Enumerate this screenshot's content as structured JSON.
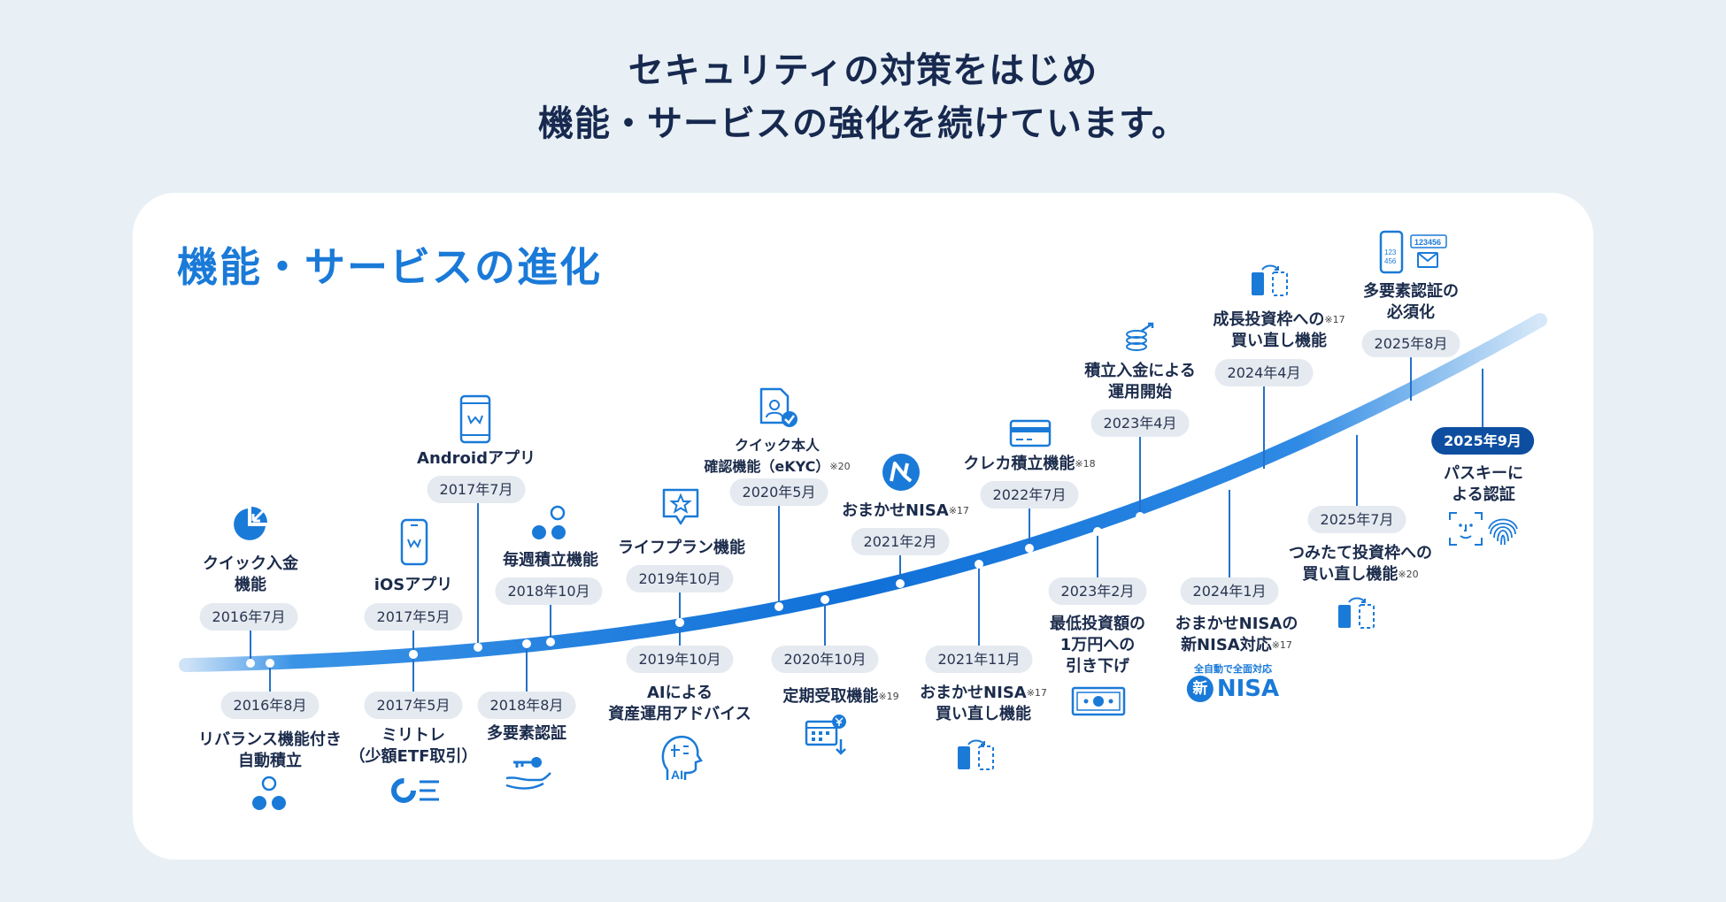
{
  "headline": {
    "line1": "セキュリティの対策をはじめ",
    "line2": "機能・サービスの強化を続けています。"
  },
  "section_title": "機能・サービスの進化",
  "colors": {
    "accent": "#1a7ad8",
    "dark_navy": "#0d4ea0",
    "pill_bg": "#e4eaf0"
  },
  "milestones": [
    {
      "id": "quick-deposit",
      "date": "2016年7月",
      "label1": "クイック入金",
      "label2": "機能",
      "note": "",
      "icon": "pie-arrow-icon"
    },
    {
      "id": "rebalance",
      "date": "2016年8月",
      "label1": "リバランス機能付き",
      "label2": "自動積立",
      "note": "",
      "icon": "dots-cluster-icon"
    },
    {
      "id": "ios-app",
      "date": "2017年5月",
      "label1": "iOSアプリ",
      "label2": "",
      "note": "",
      "icon": "phone-icon"
    },
    {
      "id": "miritore",
      "date": "2017年5月",
      "label1": "ミリトレ",
      "label2": "（少額ETF取引）",
      "note": "",
      "icon": "donut-list-icon"
    },
    {
      "id": "android-app",
      "date": "2017年7月",
      "label1": "Androidアプリ",
      "label2": "",
      "note": "",
      "icon": "phone-icon"
    },
    {
      "id": "mfa",
      "date": "2018年8月",
      "label1": "多要素認証",
      "label2": "",
      "note": "",
      "icon": "key-hand-icon"
    },
    {
      "id": "weekly",
      "date": "2018年10月",
      "label1": "毎週積立機能",
      "label2": "",
      "note": "",
      "icon": "dots-cluster-icon"
    },
    {
      "id": "lifeplan",
      "date": "2019年10月",
      "label1": "ライフプラン機能",
      "label2": "",
      "note": "",
      "icon": "star-bubble-icon"
    },
    {
      "id": "ai-advice",
      "date": "2019年10月",
      "label1": "AIによる",
      "label2": "資産運用アドバイス",
      "note": "",
      "icon": "ai-head-icon"
    },
    {
      "id": "ekyc",
      "date": "2020年5月",
      "label1": "クイック本人",
      "label2": "確認機能（eKYC）",
      "note": "※20",
      "icon": "id-doc-icon"
    },
    {
      "id": "teiki",
      "date": "2020年10月",
      "label1": "定期受取機能",
      "label2": "",
      "note": "※19",
      "icon": "calendar-yen-icon"
    },
    {
      "id": "omakase",
      "date": "2021年2月",
      "label1": "おまかせNISA",
      "label2": "",
      "note": "※17",
      "icon": "n-logo-icon"
    },
    {
      "id": "omakase-rebuy",
      "date": "2021年11月",
      "label1": "おまかせNISA",
      "label2": "買い直し機能",
      "note": "※17",
      "icon": "swap-icon"
    },
    {
      "id": "credit",
      "date": "2022年7月",
      "label1": "クレカ積立機能",
      "label2": "",
      "note": "※18",
      "icon": "credit-card-icon"
    },
    {
      "id": "min-invest",
      "date": "2023年2月",
      "label1": "最低投資額の",
      "label2": "1万円への",
      "label3": "引き下げ",
      "note": "",
      "icon": "banknote-icon"
    },
    {
      "id": "tsumitate-start",
      "date": "2023年4月",
      "label1": "積立入金による",
      "label2": "運用開始",
      "note": "",
      "icon": "coins-growth-icon"
    },
    {
      "id": "new-nisa",
      "date": "2024年1月",
      "label1": "おまかせNISAの",
      "label2": "新NISA対応",
      "note": "※17",
      "icon": "new-nisa-logo"
    },
    {
      "id": "growth-rebuy",
      "date": "2024年4月",
      "label1": "成長投資枠への",
      "label2": "買い直し機能",
      "note": "※17",
      "icon": "swap-icon"
    },
    {
      "id": "tsumitate-rebuy",
      "date": "2025年7月",
      "label1": "つみたて投資枠への",
      "label2": "買い直し機能",
      "note": "※20",
      "icon": "swap-icon"
    },
    {
      "id": "mfa-required",
      "date": "2025年8月",
      "label1": "多要素認証の",
      "label2": "必須化",
      "note": "",
      "icon": "phone-code-icon"
    },
    {
      "id": "passkey",
      "date": "2025年9月",
      "label1": "パスキーに",
      "label2": "よる認証",
      "note": "",
      "icon": "face-fingerprint-icon"
    }
  ],
  "new_nisa": {
    "sub": "全自動で全面対応",
    "shin": "新",
    "word": "NISA"
  },
  "icon_texts": {
    "ai": "AI",
    "code1": "123",
    "code2": "456",
    "code_email": "123456"
  }
}
